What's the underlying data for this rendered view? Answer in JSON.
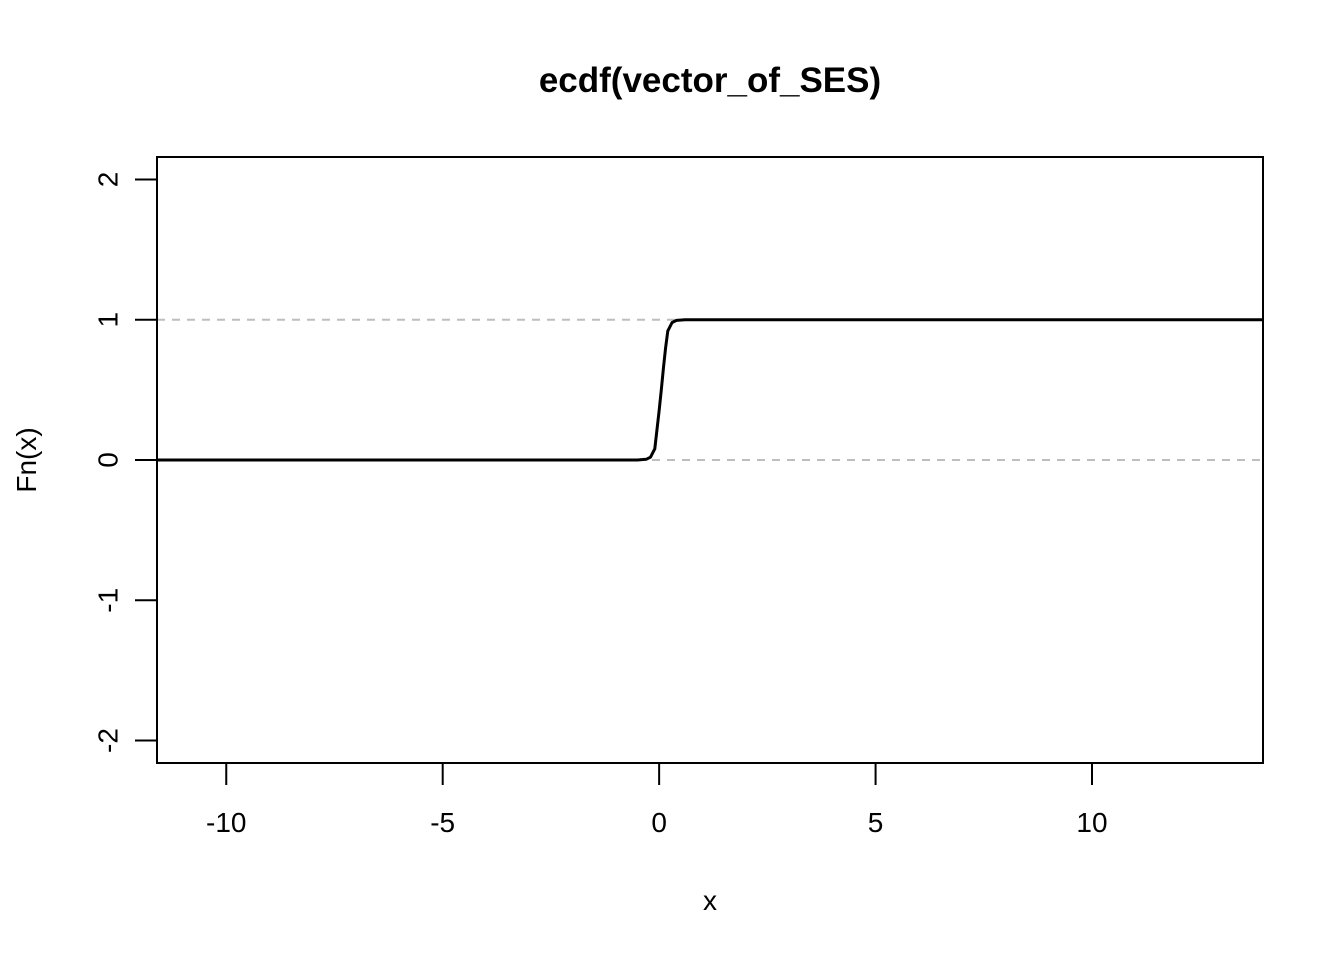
{
  "chart_data": {
    "type": "line",
    "title": "ecdf(vector_of_SES)",
    "xlabel": "x",
    "ylabel": "Fn(x)",
    "xlim": [
      -11.6,
      13.95
    ],
    "ylim": [
      -2.16,
      2.16
    ],
    "x_ticks": [
      -10,
      -5,
      0,
      5,
      10
    ],
    "x_tick_labels": [
      "-10",
      "-5",
      "0",
      "5",
      "10"
    ],
    "y_ticks": [
      -2,
      -1,
      0,
      1,
      2
    ],
    "y_tick_labels": [
      "-2",
      "-1",
      "0",
      "1",
      "2"
    ],
    "reference_lines": [
      0,
      1
    ],
    "reference_line_color": "#bebebe",
    "reference_line_style": "dashed",
    "series": [
      {
        "color": "#000000",
        "x": [
          -11.6,
          -0.5,
          -0.3,
          -0.2,
          -0.1,
          0.0,
          0.05,
          0.1,
          0.15,
          0.2,
          0.3,
          0.4,
          0.6,
          13.95
        ],
        "y": [
          0,
          0,
          0.005,
          0.02,
          0.08,
          0.35,
          0.5,
          0.66,
          0.8,
          0.92,
          0.98,
          0.995,
          1,
          1
        ]
      }
    ],
    "grid": false,
    "legend": "none"
  }
}
